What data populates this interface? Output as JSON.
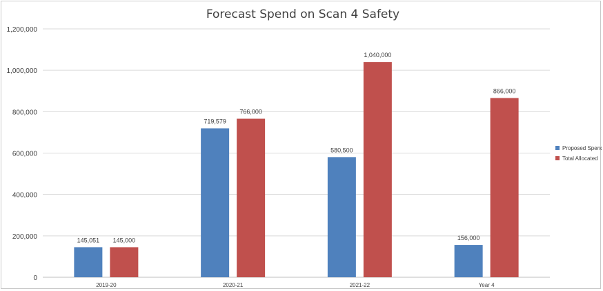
{
  "chart_data": {
    "type": "bar",
    "title": "Forecast Spend on Scan 4 Safety",
    "categories": [
      "2019-20",
      "2020-21",
      "2021-22",
      "Year 4"
    ],
    "series": [
      {
        "name": "Proposed Spend",
        "color": "#4f81bd",
        "values": [
          145051,
          719579,
          580500,
          156000
        ],
        "labels": [
          "145,051",
          "719,579",
          "580,500",
          "156,000"
        ]
      },
      {
        "name": "Total Allocated",
        "color": "#c0504d",
        "values": [
          145000,
          766000,
          1040000,
          866000
        ],
        "labels": [
          "145,000",
          "766,000",
          "1,040,000",
          "866,000"
        ]
      }
    ],
    "yticks": [
      0,
      200000,
      400000,
      600000,
      800000,
      1000000,
      1200000
    ],
    "ytick_labels": [
      "0",
      "200,000",
      "400,000",
      "600,000",
      "800,000",
      "1,000,000",
      "1,200,000"
    ],
    "ylim": [
      0,
      1200000
    ],
    "xlabel": "",
    "ylabel": "",
    "grid": true,
    "legend_position": "right"
  }
}
